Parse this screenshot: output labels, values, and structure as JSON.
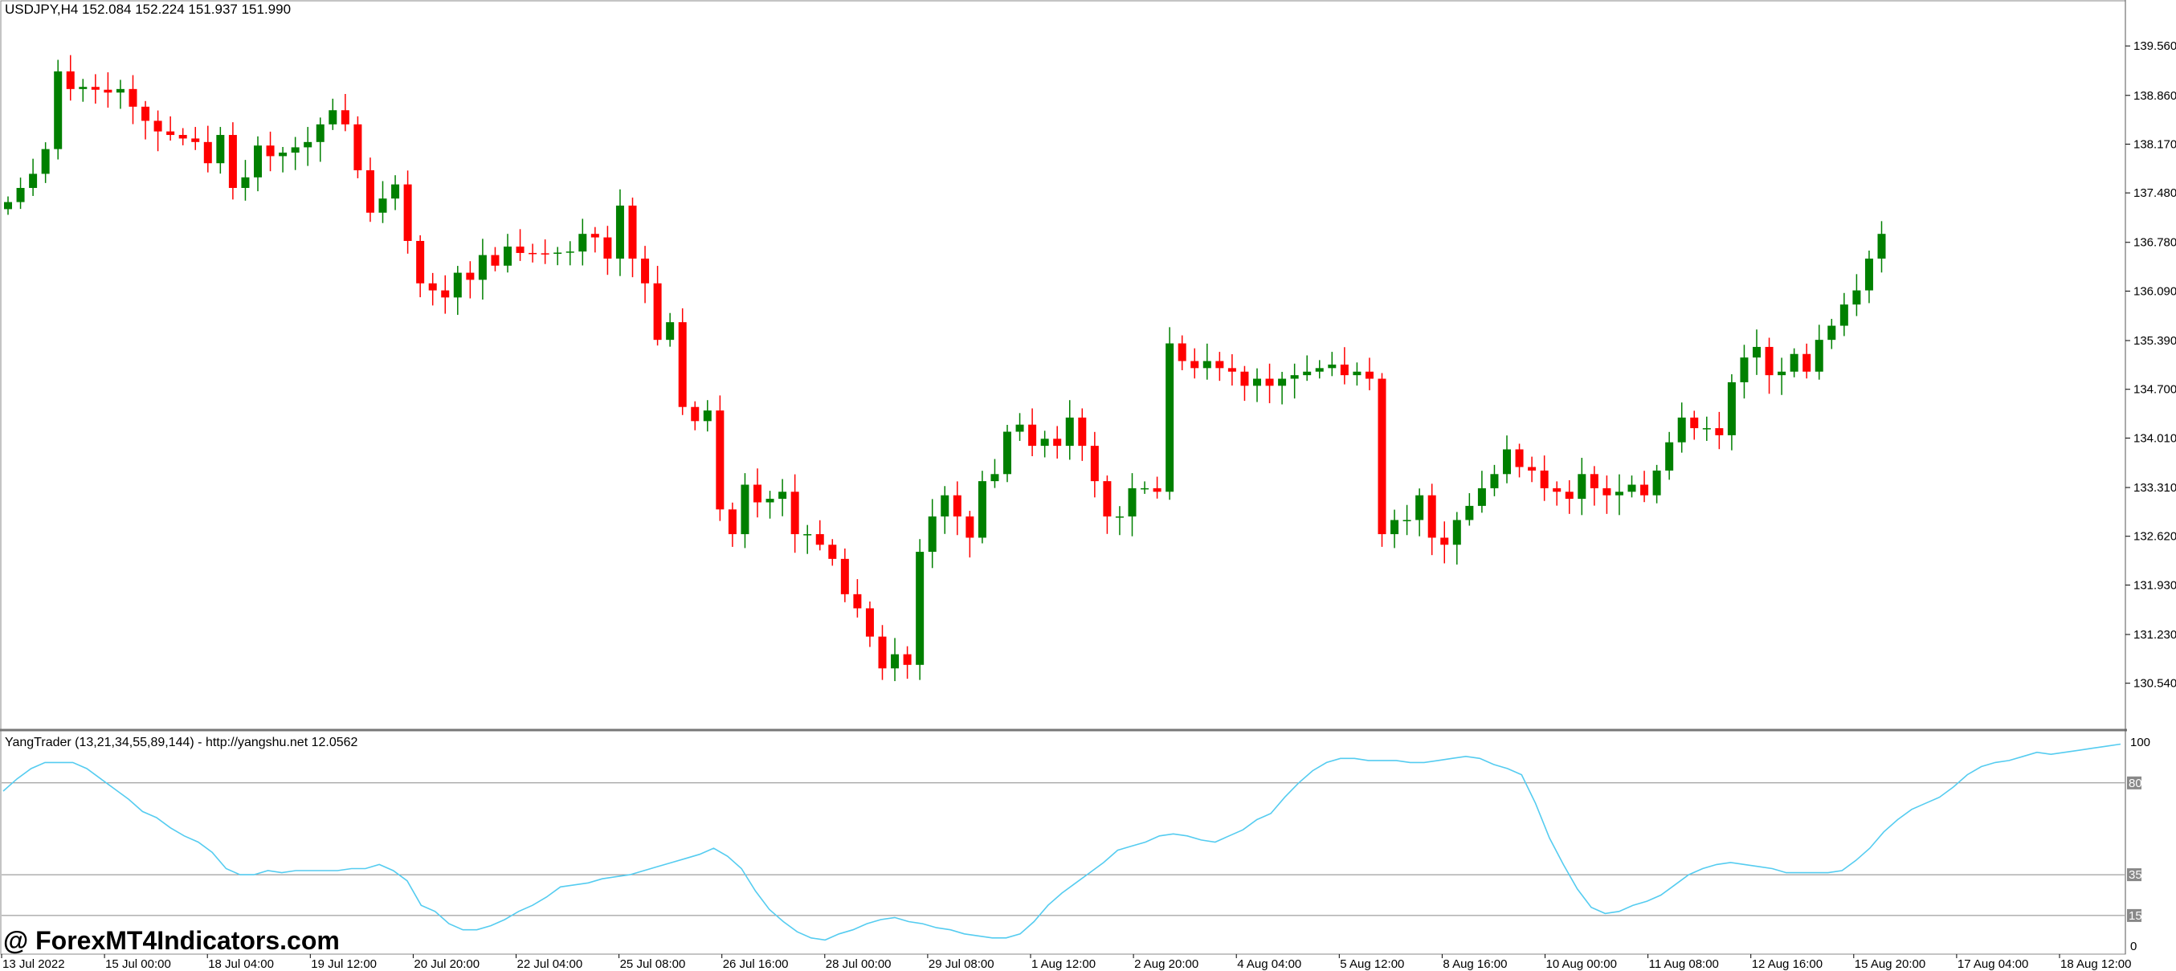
{
  "header": {
    "symbol_info": "USDJPY,H4  152.084 152.224 151.937 151.990"
  },
  "indicator": {
    "label": "YangTrader (13,21,34,55,89,144) - http://yangshu.net 12.0562"
  },
  "watermark": "@ ForexMT4Indicators.com",
  "colors": {
    "bull": "#008000",
    "bear": "#ff0000",
    "indicator_line": "#55ccf0",
    "grid": "#888888",
    "background": "#ffffff"
  },
  "chart_data": [
    {
      "type": "candlestick",
      "title": "USDJPY,H4",
      "ylim": [
        130.15,
        139.96
      ],
      "y_ticks": [
        "139.560",
        "138.860",
        "138.170",
        "137.480",
        "136.780",
        "136.090",
        "135.390",
        "134.700",
        "134.010",
        "133.310",
        "132.620",
        "131.930",
        "131.230",
        "130.540"
      ],
      "x_ticks": [
        "13 Jul 2022",
        "15 Jul 00:00",
        "18 Jul 04:00",
        "19 Jul 12:00",
        "20 Jul 20:00",
        "22 Jul 04:00",
        "25 Jul 08:00",
        "26 Jul 16:00",
        "28 Jul 00:00",
        "29 Jul 08:00",
        "1 Aug 12:00",
        "2 Aug 20:00",
        "4 Aug 04:00",
        "5 Aug 12:00",
        "8 Aug 16:00",
        "10 Aug 00:00",
        "11 Aug 08:00",
        "12 Aug 16:00",
        "15 Aug 20:00",
        "17 Aug 04:00",
        "18 Aug 12:00"
      ],
      "close_path": [
        [
          0,
          137.35
        ],
        [
          2,
          137.75
        ],
        [
          3,
          138.1
        ],
        [
          4,
          139.2
        ],
        [
          5,
          138.95
        ],
        [
          6,
          138.98
        ],
        [
          8,
          138.9
        ],
        [
          9,
          138.95
        ],
        [
          10,
          138.7
        ],
        [
          11,
          138.5
        ],
        [
          12,
          138.35
        ],
        [
          13,
          138.3
        ],
        [
          15,
          138.2
        ],
        [
          16,
          137.9
        ],
        [
          17,
          138.3
        ],
        [
          18,
          137.55
        ],
        [
          19,
          137.7
        ],
        [
          20,
          138.15
        ],
        [
          21,
          138.0
        ],
        [
          22,
          138.05
        ],
        [
          24,
          138.2
        ],
        [
          25,
          138.45
        ],
        [
          26,
          138.65
        ],
        [
          27,
          138.45
        ],
        [
          28,
          137.8
        ],
        [
          29,
          137.2
        ],
        [
          31,
          137.6
        ],
        [
          32,
          136.8
        ],
        [
          33,
          136.2
        ],
        [
          34,
          136.1
        ],
        [
          35,
          136.0
        ],
        [
          36,
          136.35
        ],
        [
          37,
          136.25
        ],
        [
          38,
          136.6
        ],
        [
          39,
          136.45
        ],
        [
          40,
          136.72
        ],
        [
          41,
          136.63
        ],
        [
          43,
          136.62
        ],
        [
          45,
          136.65
        ],
        [
          46,
          136.9
        ],
        [
          47,
          136.85
        ],
        [
          48,
          136.55
        ],
        [
          49,
          137.3
        ],
        [
          50,
          136.55
        ],
        [
          51,
          136.2
        ],
        [
          52,
          135.4
        ],
        [
          53,
          135.65
        ],
        [
          54,
          134.45
        ],
        [
          55,
          134.25
        ],
        [
          56,
          134.4
        ],
        [
          57,
          133.0
        ],
        [
          58,
          132.65
        ],
        [
          59,
          133.35
        ],
        [
          60,
          133.1
        ],
        [
          61,
          133.15
        ],
        [
          62,
          133.25
        ],
        [
          63,
          132.65
        ],
        [
          64,
          132.65
        ],
        [
          65,
          132.5
        ],
        [
          66,
          132.3
        ],
        [
          67,
          131.8
        ],
        [
          68,
          131.6
        ],
        [
          69,
          131.2
        ],
        [
          70,
          130.75
        ],
        [
          71,
          130.95
        ],
        [
          72,
          130.8
        ],
        [
          73,
          132.4
        ],
        [
          74,
          132.9
        ],
        [
          75,
          133.2
        ],
        [
          76,
          132.9
        ],
        [
          77,
          132.6
        ],
        [
          78,
          133.4
        ],
        [
          79,
          133.5
        ],
        [
          80,
          134.1
        ],
        [
          81,
          134.2
        ],
        [
          82,
          133.9
        ],
        [
          83,
          134.0
        ],
        [
          84,
          133.9
        ],
        [
          85,
          134.3
        ],
        [
          86,
          133.9
        ],
        [
          87,
          133.4
        ],
        [
          88,
          132.9
        ],
        [
          89,
          132.9
        ],
        [
          90,
          133.3
        ],
        [
          91,
          133.3
        ],
        [
          92,
          133.25
        ],
        [
          93,
          135.35
        ],
        [
          94,
          135.1
        ],
        [
          95,
          135.0
        ],
        [
          96,
          135.1
        ],
        [
          97,
          135.0
        ],
        [
          98,
          134.95
        ],
        [
          99,
          134.75
        ],
        [
          100,
          134.85
        ],
        [
          101,
          134.75
        ],
        [
          102,
          134.85
        ],
        [
          103,
          134.9
        ],
        [
          104,
          134.95
        ],
        [
          105,
          135.0
        ],
        [
          106,
          135.05
        ],
        [
          107,
          134.9
        ],
        [
          108,
          134.95
        ],
        [
          109,
          134.85
        ],
        [
          110,
          132.65
        ],
        [
          111,
          132.85
        ],
        [
          112,
          132.85
        ],
        [
          113,
          133.2
        ],
        [
          114,
          132.6
        ],
        [
          115,
          132.5
        ],
        [
          116,
          132.85
        ],
        [
          117,
          133.05
        ],
        [
          118,
          133.3
        ],
        [
          119,
          133.5
        ],
        [
          120,
          133.85
        ],
        [
          121,
          133.6
        ],
        [
          122,
          133.55
        ],
        [
          123,
          133.3
        ],
        [
          124,
          133.25
        ],
        [
          125,
          133.15
        ],
        [
          126,
          133.5
        ],
        [
          127,
          133.3
        ],
        [
          128,
          133.2
        ],
        [
          129,
          133.25
        ],
        [
          130,
          133.35
        ],
        [
          131,
          133.2
        ],
        [
          132,
          133.55
        ],
        [
          133,
          133.95
        ],
        [
          134,
          134.3
        ],
        [
          135,
          134.15
        ],
        [
          136,
          134.15
        ],
        [
          137,
          134.05
        ],
        [
          138,
          134.8
        ],
        [
          139,
          135.15
        ],
        [
          140,
          135.3
        ],
        [
          141,
          134.9
        ],
        [
          142,
          134.95
        ],
        [
          143,
          135.2
        ],
        [
          144,
          134.95
        ],
        [
          145,
          135.4
        ],
        [
          146,
          135.6
        ],
        [
          147,
          135.9
        ],
        [
          148,
          136.1
        ],
        [
          149,
          136.55
        ],
        [
          150,
          136.9
        ]
      ]
    },
    {
      "type": "line",
      "series": [
        {
          "name": "YangTrader",
          "values": []
        }
      ],
      "ylim": [
        0,
        100
      ],
      "y_ticks": [
        "100",
        "80",
        "35",
        "15",
        "0"
      ],
      "levels": [
        80,
        35,
        15
      ],
      "x_ticks": [
        "13 Jul 2022",
        "15 Jul 00:00",
        "18 Jul 04:00",
        "19 Jul 12:00",
        "20 Jul 20:00",
        "22 Jul 04:00",
        "25 Jul 08:00",
        "26 Jul 16:00",
        "28 Jul 00:00",
        "29 Jul 08:00",
        "1 Aug 12:00",
        "2 Aug 20:00",
        "4 Aug 04:00",
        "5 Aug 12:00",
        "8 Aug 16:00",
        "10 Aug 00:00",
        "11 Aug 08:00",
        "12 Aug 16:00",
        "15 Aug 20:00",
        "17 Aug 04:00",
        "18 Aug 12:00"
      ],
      "line_path": [
        [
          0,
          76
        ],
        [
          2,
          82
        ],
        [
          4,
          87
        ],
        [
          6,
          90
        ],
        [
          8,
          90
        ],
        [
          10,
          90
        ],
        [
          12,
          87
        ],
        [
          14,
          82
        ],
        [
          16,
          77
        ],
        [
          18,
          72
        ],
        [
          20,
          66
        ],
        [
          22,
          63
        ],
        [
          24,
          58
        ],
        [
          26,
          54
        ],
        [
          28,
          51
        ],
        [
          30,
          46
        ],
        [
          32,
          38
        ],
        [
          34,
          35
        ],
        [
          36,
          35
        ],
        [
          38,
          37
        ],
        [
          40,
          36
        ],
        [
          42,
          37
        ],
        [
          44,
          37
        ],
        [
          46,
          37
        ],
        [
          48,
          37
        ],
        [
          50,
          38
        ],
        [
          52,
          38
        ],
        [
          54,
          40
        ],
        [
          56,
          37
        ],
        [
          58,
          32
        ],
        [
          60,
          20
        ],
        [
          62,
          17
        ],
        [
          64,
          11
        ],
        [
          66,
          8
        ],
        [
          68,
          8
        ],
        [
          70,
          10
        ],
        [
          72,
          13
        ],
        [
          74,
          17
        ],
        [
          76,
          20
        ],
        [
          78,
          24
        ],
        [
          80,
          29
        ],
        [
          82,
          30
        ],
        [
          84,
          31
        ],
        [
          86,
          33
        ],
        [
          88,
          34
        ],
        [
          90,
          35
        ],
        [
          92,
          37
        ],
        [
          94,
          39
        ],
        [
          96,
          41
        ],
        [
          98,
          43
        ],
        [
          100,
          45
        ],
        [
          102,
          48
        ],
        [
          104,
          44
        ],
        [
          106,
          38
        ],
        [
          108,
          27
        ],
        [
          110,
          18
        ],
        [
          112,
          12
        ],
        [
          114,
          7
        ],
        [
          116,
          4
        ],
        [
          118,
          3
        ],
        [
          120,
          6
        ],
        [
          122,
          8
        ],
        [
          124,
          11
        ],
        [
          126,
          13
        ],
        [
          128,
          14
        ],
        [
          130,
          12
        ],
        [
          132,
          11
        ],
        [
          134,
          9
        ],
        [
          136,
          8
        ],
        [
          138,
          6
        ],
        [
          140,
          5
        ],
        [
          142,
          4
        ],
        [
          144,
          4
        ],
        [
          146,
          6
        ],
        [
          148,
          12
        ],
        [
          150,
          20
        ],
        [
          152,
          26
        ],
        [
          154,
          31
        ],
        [
          156,
          36
        ],
        [
          158,
          41
        ],
        [
          160,
          47
        ],
        [
          162,
          49
        ],
        [
          164,
          51
        ],
        [
          166,
          54
        ],
        [
          168,
          55
        ],
        [
          170,
          54
        ],
        [
          172,
          52
        ],
        [
          174,
          51
        ],
        [
          176,
          54
        ],
        [
          178,
          57
        ],
        [
          180,
          62
        ],
        [
          182,
          65
        ],
        [
          184,
          73
        ],
        [
          186,
          80
        ],
        [
          188,
          86
        ],
        [
          190,
          90
        ],
        [
          192,
          92
        ],
        [
          194,
          92
        ],
        [
          196,
          91
        ],
        [
          198,
          91
        ],
        [
          200,
          91
        ],
        [
          202,
          90
        ],
        [
          204,
          90
        ],
        [
          206,
          91
        ],
        [
          208,
          92
        ],
        [
          210,
          93
        ],
        [
          212,
          92
        ],
        [
          214,
          89
        ],
        [
          216,
          87
        ],
        [
          218,
          84
        ],
        [
          220,
          70
        ],
        [
          222,
          53
        ],
        [
          224,
          40
        ],
        [
          226,
          28
        ],
        [
          228,
          19
        ],
        [
          230,
          16
        ],
        [
          232,
          17
        ],
        [
          234,
          20
        ],
        [
          236,
          22
        ],
        [
          238,
          25
        ],
        [
          240,
          30
        ],
        [
          242,
          35
        ],
        [
          244,
          38
        ],
        [
          246,
          40
        ],
        [
          248,
          41
        ],
        [
          250,
          40
        ],
        [
          252,
          39
        ],
        [
          254,
          38
        ],
        [
          256,
          36
        ],
        [
          258,
          36
        ],
        [
          260,
          36
        ],
        [
          262,
          36
        ],
        [
          264,
          37
        ],
        [
          266,
          42
        ],
        [
          268,
          48
        ],
        [
          270,
          56
        ],
        [
          272,
          62
        ],
        [
          274,
          67
        ],
        [
          276,
          70
        ],
        [
          278,
          73
        ],
        [
          280,
          78
        ],
        [
          282,
          84
        ],
        [
          284,
          88
        ],
        [
          286,
          90
        ],
        [
          288,
          91
        ],
        [
          290,
          93
        ],
        [
          292,
          95
        ],
        [
          294,
          94
        ],
        [
          296,
          95
        ],
        [
          298,
          96
        ],
        [
          300,
          97
        ],
        [
          302,
          98
        ],
        [
          304,
          99
        ]
      ]
    }
  ]
}
